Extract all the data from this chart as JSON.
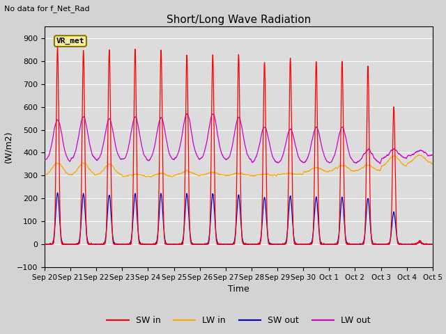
{
  "title": "Short/Long Wave Radiation",
  "subtitle": "No data for f_Net_Rad",
  "ylabel": "(W/m2)",
  "xlabel": "Time",
  "ylim": [
    -100,
    950
  ],
  "yticks": [
    -100,
    0,
    100,
    200,
    300,
    400,
    500,
    600,
    700,
    800,
    900
  ],
  "xtick_labels": [
    "Sep 20",
    "Sep 21",
    "Sep 22",
    "Sep 23",
    "Sep 24",
    "Sep 25",
    "Sep 26",
    "Sep 27",
    "Sep 28",
    "Sep 29",
    "Sep 30",
    "Oct 1",
    "Oct 2",
    "Oct 3",
    "Oct 4",
    "Oct 5"
  ],
  "box_label": "VR_met",
  "colors": {
    "SW_in": "#ff0000",
    "LW_in": "#ffa500",
    "SW_out": "#0000cc",
    "LW_out": "#cc00cc"
  },
  "bg_color": "#dcdcdc",
  "fig_bg_color": "#d3d3d3",
  "grid_color": "#ffffff",
  "n_days": 15,
  "sw_in_peaks": [
    860,
    845,
    850,
    850,
    850,
    828,
    828,
    828,
    795,
    815,
    800,
    800,
    780,
    600,
    15
  ],
  "lw_in_peaks": [
    355,
    355,
    350,
    305,
    310,
    320,
    315,
    310,
    305,
    310,
    335,
    345,
    345,
    385,
    390
  ],
  "lw_in_base": [
    300,
    300,
    300,
    295,
    295,
    300,
    300,
    300,
    300,
    305,
    315,
    320,
    320,
    340,
    350
  ],
  "sw_out_peaks": [
    225,
    220,
    215,
    220,
    220,
    220,
    220,
    215,
    205,
    210,
    205,
    205,
    200,
    140,
    10
  ],
  "lw_out_peaks": [
    548,
    555,
    548,
    555,
    555,
    570,
    570,
    555,
    515,
    505,
    510,
    510,
    415,
    415,
    410
  ],
  "lw_out_base": [
    360,
    370,
    365,
    365,
    365,
    370,
    370,
    365,
    355,
    355,
    355,
    355,
    355,
    375,
    385
  ]
}
